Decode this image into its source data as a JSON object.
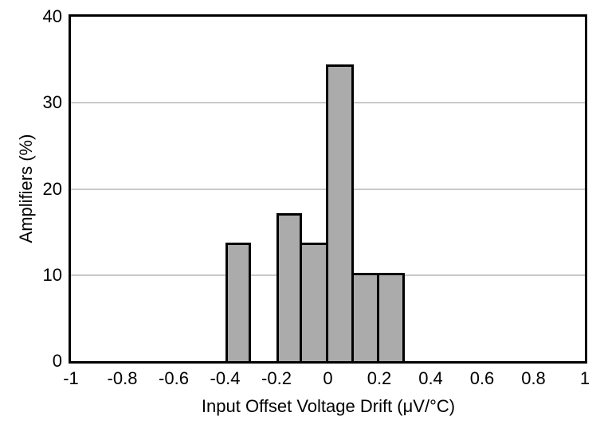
{
  "chart_data": {
    "type": "bar",
    "subtype": "histogram",
    "title": "",
    "xlabel": "Input Offset Voltage Drift (μV/°C)",
    "ylabel": "Amplifiers (%)",
    "xlim": [
      -1,
      1
    ],
    "ylim": [
      0,
      40
    ],
    "xticks": [
      -1,
      -0.8,
      -0.6,
      -0.4,
      -0.2,
      0,
      0.2,
      0.4,
      0.6,
      0.8,
      1
    ],
    "xtick_labels": [
      "-1",
      "-0.8",
      "-0.6",
      "-0.4",
      "-0.2",
      "0",
      "0.2",
      "0.4",
      "0.6",
      "0.8",
      "1"
    ],
    "yticks": [
      0,
      10,
      20,
      30,
      40
    ],
    "ytick_labels": [
      "0",
      "10",
      "20",
      "30",
      "40"
    ],
    "gridlines_y": [
      10,
      20,
      30
    ],
    "grid": "horizontal-only",
    "legend": "none",
    "bin_width": 0.1,
    "bins": [
      {
        "x0": -0.4,
        "x1": -0.3,
        "value": 13.8
      },
      {
        "x0": -0.2,
        "x1": -0.1,
        "value": 17.2
      },
      {
        "x0": -0.1,
        "x1": 0.0,
        "value": 13.8
      },
      {
        "x0": 0.0,
        "x1": 0.1,
        "value": 34.5
      },
      {
        "x0": 0.1,
        "x1": 0.2,
        "value": 10.3
      },
      {
        "x0": 0.2,
        "x1": 0.3,
        "value": 10.3
      }
    ],
    "colors": {
      "bar_fill": "#ababab",
      "bar_border": "#000000",
      "gridline": "#c9c9c9",
      "axis_border": "#000000",
      "background": "#ffffff",
      "text": "#000000"
    }
  }
}
